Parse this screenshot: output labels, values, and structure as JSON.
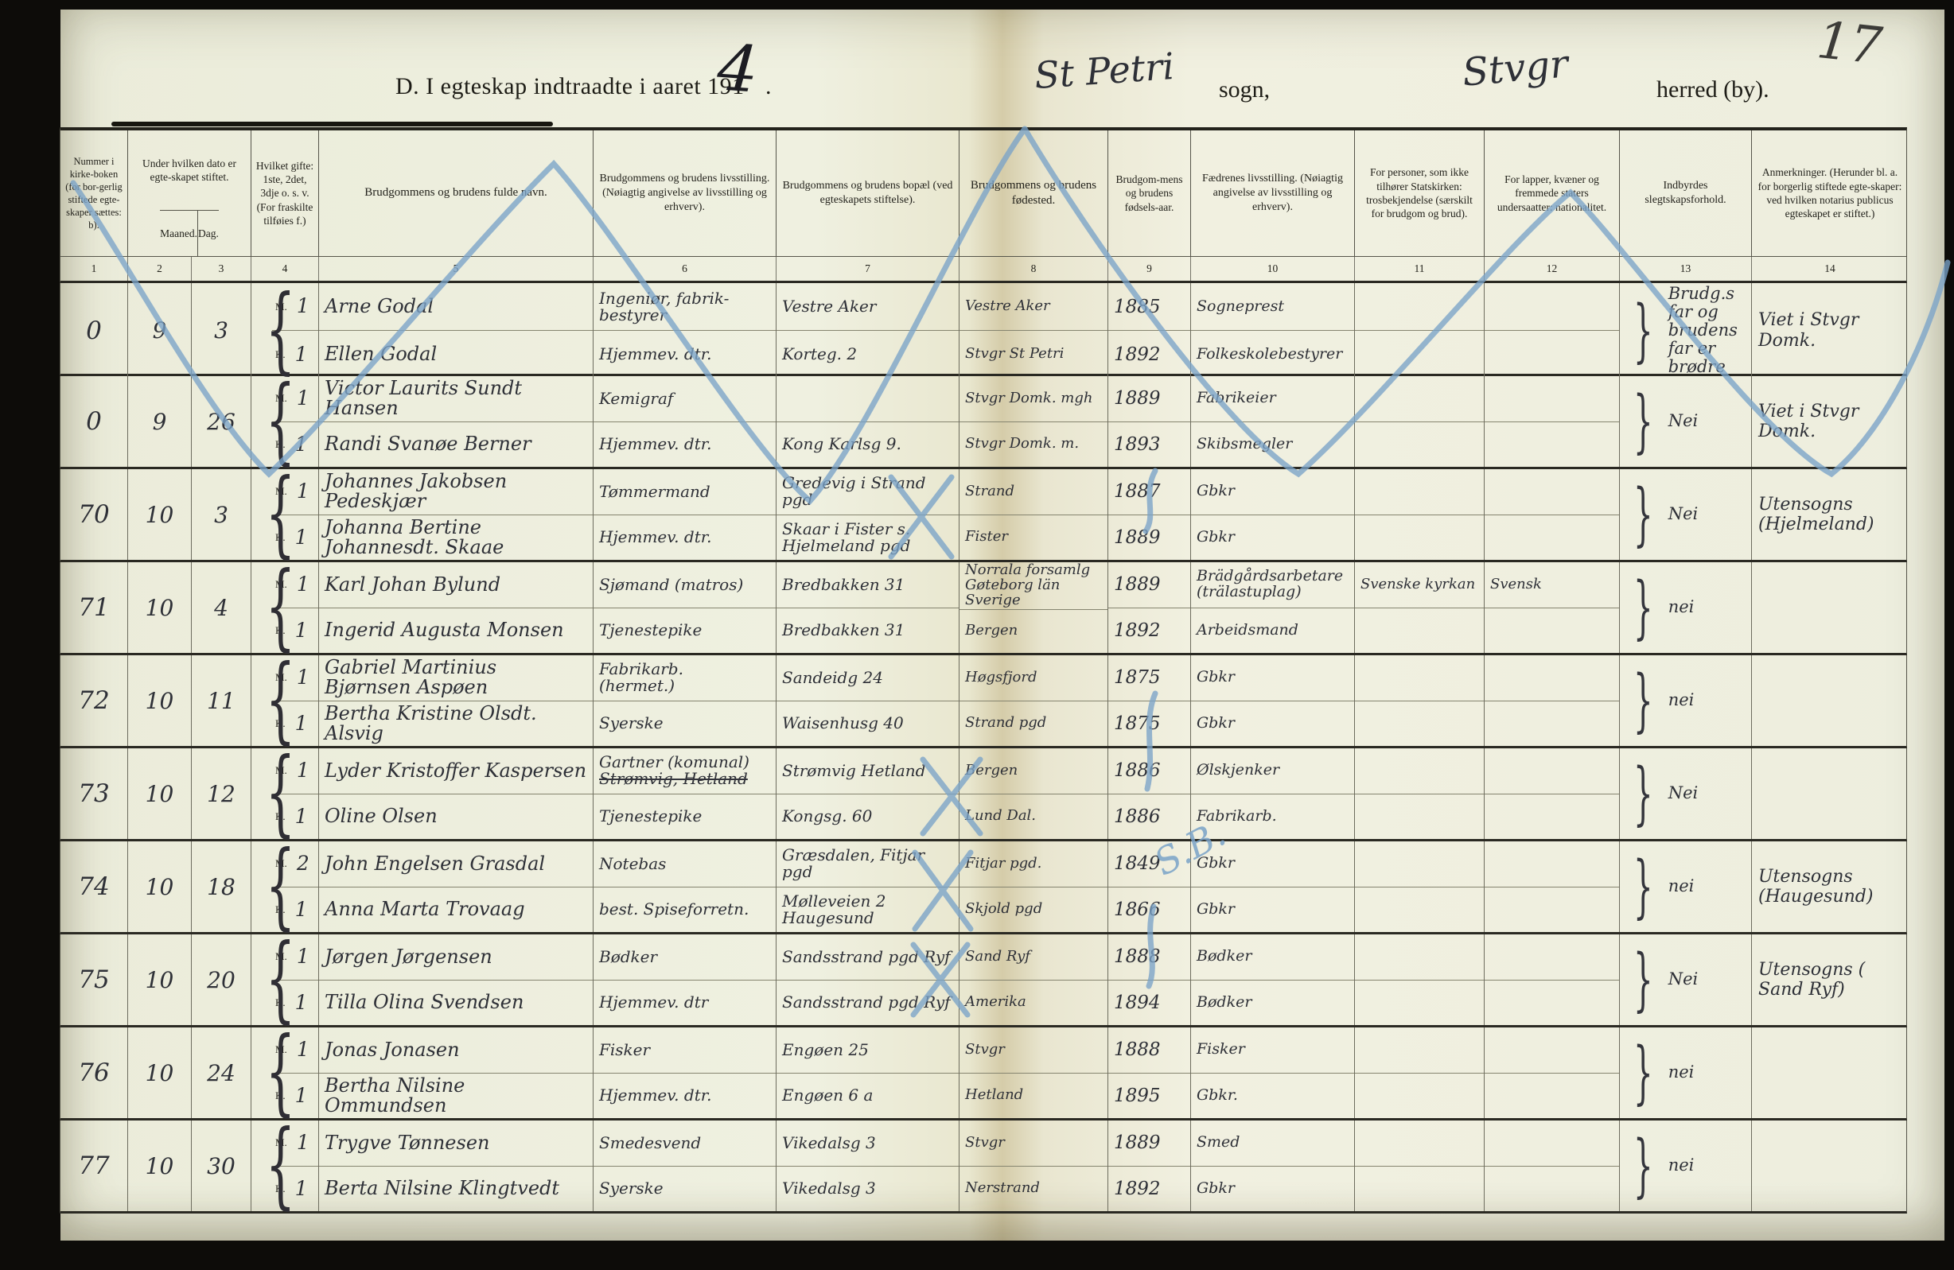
{
  "page": {
    "number": "17",
    "title_prefix": "D.  I egteskap indtraadte i aaret 191",
    "title_year_digit": "4",
    "title_dot": ".",
    "sogn_value": "St Petri",
    "sogn_label": "sogn,",
    "herred_value": "Stvgr",
    "herred_label": "herred (by)."
  },
  "annotations": {
    "pencil_color": "#7aa3c8",
    "ink_color": "#2e3037",
    "sb_label": "S.B."
  },
  "table": {
    "m_label": "M.",
    "k_label": "K.",
    "col_numbers": [
      "1",
      "2",
      "3",
      "4",
      "5",
      "6",
      "7",
      "8",
      "9",
      "10",
      "11",
      "12",
      "13",
      "14"
    ],
    "headers": {
      "nummer": "Nummer i kirke-boken (for bor-gerlig stiftede egte-skaper sættes: b).",
      "dato": "Under hvilken dato er egte-skapet stiftet.",
      "maaned": "Maaned.",
      "dag": "Dag.",
      "gifte": "Hvilket gifte: 1ste, 2det, 3dje o. s. v. (For fraskilte tilføies f.)",
      "navn": "Brudgommens og brudens fulde navn.",
      "livsstilling": "Brudgommens og brudens livsstilling. (Nøiagtig angivelse av livsstilling og erhverv).",
      "bopel": "Brudgommens og brudens bopæl (ved egteskapets stiftelse).",
      "fodested": "Brudgommens og brudens fødested.",
      "aar": "Brudgom-mens og brudens fødsels-aar.",
      "faedrene": "Fædrenes livsstilling. (Nøiagtig angivelse av livsstilling og erhverv).",
      "tro": "For personer, som ikke tilhører Statskirken: trosbekjendelse (særskilt for brudgom og brud).",
      "nasjonalitet": "For lapper, kvæner og fremmede staters undersaatter: nationalitet.",
      "slegtskap": "Indbyrdes slegtskapsforhold.",
      "anmerkninger": "Anmerkninger. (Herunder bl. a. for borgerlig stiftede egte-skaper: ved hvilken notarius publicus egteskapet er stiftet.)"
    }
  },
  "rows": [
    {
      "nr": "0",
      "maaned": "9",
      "dag": "3",
      "groom": {
        "gifte": "1",
        "navn": "Arne Godal",
        "still": "Ingeniør, fabrik-",
        "still2": "bestyrer",
        "bopel": "Vestre Aker",
        "fodested": "Vestre Aker",
        "aar": "1885",
        "far": "Sogneprest",
        "tro": "",
        "nat": ""
      },
      "bride": {
        "gifte": "1",
        "navn": "Ellen Godal",
        "still": "Hjemmev. dtr.",
        "still2": "",
        "bopel": "Korteg. 2",
        "fodested": "Stvgr St Petri",
        "aar": "1892",
        "far": "Folkeskolebestyrer",
        "tro": "",
        "nat": ""
      },
      "slegt": "Brudg.s far og brudens far er brødre",
      "anm": "Viet i Stvgr Domk."
    },
    {
      "nr": "0",
      "maaned": "9",
      "dag": "26",
      "groom": {
        "gifte": "1",
        "navn": "Victor Laurits Sundt Hansen",
        "still": "Kemigraf",
        "still2": "",
        "bopel": "",
        "fodested": "Stvgr Domk. mgh",
        "aar": "1889",
        "far": "Fabrikeier",
        "tro": "",
        "nat": ""
      },
      "bride": {
        "gifte": "1",
        "navn": "Randi Svanøe Berner",
        "still": "Hjemmev. dtr.",
        "still2": "",
        "bopel": "Kong Karlsg 9.",
        "fodested": "Stvgr Domk. m.",
        "aar": "1893",
        "far": "Skibsmegler",
        "tro": "",
        "nat": ""
      },
      "slegt": "Nei",
      "anm": "Viet i Stvgr Domk."
    },
    {
      "nr": "70",
      "maaned": "10",
      "dag": "3",
      "groom": {
        "gifte": "1",
        "navn": "Johannes Jakobsen Pedeskjær",
        "still": "Tømmermand",
        "still2": "",
        "bopel": "Gredevig i Strand pgd",
        "fodested": "Strand",
        "aar": "1887",
        "far": "Gbkr",
        "tro": "",
        "nat": ""
      },
      "bride": {
        "gifte": "1",
        "navn": "Johanna Bertine Johannesdt. Skaae",
        "still": "Hjemmev. dtr.",
        "still2": "",
        "bopel": "Skaar i Fister s. Hjelmeland pgd",
        "fodested": "Fister",
        "aar": "1889",
        "far": "Gbkr",
        "tro": "",
        "nat": ""
      },
      "slegt": "Nei",
      "anm": "Utensogns (Hjelmeland)"
    },
    {
      "nr": "71",
      "maaned": "10",
      "dag": "4",
      "groom": {
        "gifte": "1",
        "navn": "Karl Johan Bylund",
        "still": "Sjømand (matros)",
        "still2": "",
        "bopel": "Bredbakken 31",
        "fodested": "Norrala forsamlg Gøteborg län Sverige",
        "aar": "1889",
        "far": "Brädgårdsarbetare (trälastuplag)",
        "tro": "Svenske kyrkan",
        "nat": "Svensk"
      },
      "bride": {
        "gifte": "1",
        "navn": "Ingerid Augusta Monsen",
        "still": "Tjenestepike",
        "still2": "",
        "bopel": "Bredbakken 31",
        "fodested": "Bergen",
        "aar": "1892",
        "far": "Arbeidsmand",
        "tro": "",
        "nat": ""
      },
      "slegt": "nei",
      "anm": ""
    },
    {
      "nr": "72",
      "maaned": "10",
      "dag": "11",
      "groom": {
        "gifte": "1",
        "navn": "Gabriel Martinius Bjørnsen Aspøen",
        "still": "Fabrikarb.",
        "still2": "(hermet.)",
        "bopel": "Sandeidg 24",
        "fodested": "Høgsfjord",
        "aar": "1875",
        "far": "Gbkr",
        "tro": "",
        "nat": ""
      },
      "bride": {
        "gifte": "1",
        "navn": "Bertha Kristine Olsdt. Alsvig",
        "still": "Syerske",
        "still2": "",
        "bopel": "Waisenhusg 40",
        "fodested": "Strand pgd",
        "aar": "1875",
        "far": "Gbkr",
        "tro": "",
        "nat": ""
      },
      "slegt": "nei",
      "anm": ""
    },
    {
      "nr": "73",
      "maaned": "10",
      "dag": "12",
      "groom": {
        "gifte": "1",
        "navn": "Lyder Kristoffer Kaspersen",
        "still": "Gartner (komunal)",
        "still2": "Strømvig, Hetland",
        "still2_struck": true,
        "bopel": "Strømvig Hetland",
        "fodested": "Bergen",
        "aar": "1886",
        "far": "Ølskjenker",
        "tro": "",
        "nat": ""
      },
      "bride": {
        "gifte": "1",
        "navn": "Oline Olsen",
        "still": "Tjenestepike",
        "still2": "",
        "bopel": "Kongsg. 60",
        "fodested": "Lund Dal.",
        "aar": "1886",
        "far": "Fabrikarb.",
        "tro": "",
        "nat": ""
      },
      "slegt": "Nei",
      "anm": ""
    },
    {
      "nr": "74",
      "maaned": "10",
      "dag": "18",
      "groom": {
        "gifte": "2",
        "navn": "John Engelsen Grasdal",
        "still": "Notebas",
        "still2": "",
        "bopel": "Græsdalen, Fitjar pgd",
        "fodested": "Fitjar pgd.",
        "aar": "1849",
        "far": "Gbkr",
        "tro": "",
        "nat": ""
      },
      "bride": {
        "gifte": "1",
        "navn": "Anna Marta Trovaag",
        "still": "best. Spiseforretn.",
        "still2": "",
        "bopel": "Mølleveien 2 Haugesund",
        "fodested": "Skjold pgd",
        "aar": "1866",
        "far": "Gbkr",
        "tro": "",
        "nat": ""
      },
      "slegt": "nei",
      "anm": "Utensogns (Haugesund)"
    },
    {
      "nr": "75",
      "maaned": "10",
      "dag": "20",
      "groom": {
        "gifte": "1",
        "navn": "Jørgen Jørgensen",
        "still": "Bødker",
        "still2": "",
        "bopel": "Sandsstrand pgd Ryf",
        "fodested": "Sand Ryf",
        "aar": "1888",
        "far": "Bødker",
        "tro": "",
        "nat": ""
      },
      "bride": {
        "gifte": "1",
        "navn": "Tilla Olina Svendsen",
        "still": "Hjemmev. dtr",
        "still2": "",
        "bopel": "Sandsstrand pgd Ryf",
        "fodested": "Amerika",
        "aar": "1894",
        "far": "Bødker",
        "tro": "",
        "nat": ""
      },
      "slegt": "Nei",
      "anm": "Utensogns ( Sand Ryf)"
    },
    {
      "nr": "76",
      "maaned": "10",
      "dag": "24",
      "groom": {
        "gifte": "1",
        "navn": "Jonas Jonasen",
        "still": "Fisker",
        "still2": "",
        "bopel": "Engøen 25",
        "fodested": "Stvgr",
        "aar": "1888",
        "far": "Fisker",
        "tro": "",
        "nat": ""
      },
      "bride": {
        "gifte": "1",
        "navn": "Bertha Nilsine Ommundsen",
        "still": "Hjemmev. dtr.",
        "still2": "",
        "bopel": "Engøen 6 a",
        "fodested": "Hetland",
        "aar": "1895",
        "far": "Gbkr.",
        "tro": "",
        "nat": ""
      },
      "slegt": "nei",
      "anm": ""
    },
    {
      "nr": "77",
      "maaned": "10",
      "dag": "30",
      "groom": {
        "gifte": "1",
        "navn": "Trygve Tønnesen",
        "still": "Smedesvend",
        "still2": "",
        "bopel": "Vikedalsg 3",
        "fodested": "Stvgr",
        "aar": "1889",
        "far": "Smed",
        "tro": "",
        "nat": ""
      },
      "bride": {
        "gifte": "1",
        "navn": "Berta Nilsine Klingtvedt",
        "still": "Syerske",
        "still2": "",
        "bopel": "Vikedalsg 3",
        "fodested": "Nerstrand",
        "aar": "1892",
        "far": "Gbkr",
        "tro": "",
        "nat": ""
      },
      "slegt": "nei",
      "anm": ""
    }
  ]
}
